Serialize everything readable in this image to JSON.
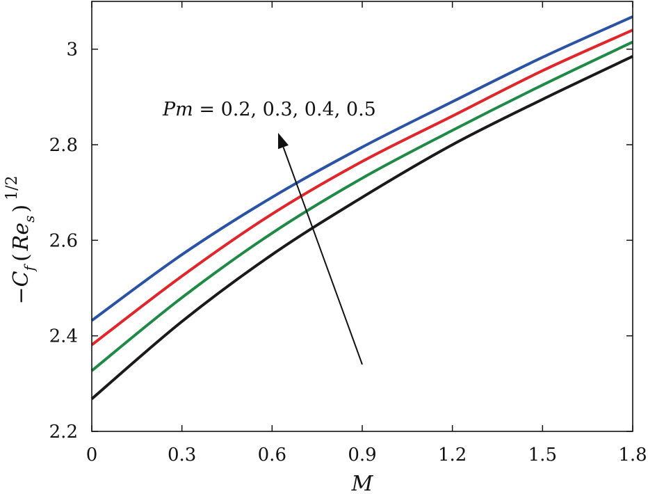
{
  "chart_data": {
    "type": "line",
    "xlabel": "M",
    "ylabel": "−C_f ( Re_s ) 1/2",
    "ylabel_parts": {
      "minus": "−",
      "c": "C",
      "f_sub": "f",
      "open": "(",
      "re": "Re",
      "s_sub": "s",
      "close": ")",
      "exp": "1/2"
    },
    "xlim": [
      0,
      1.8
    ],
    "ylim": [
      2.2,
      3.1
    ],
    "x_ticks": [
      0,
      0.3,
      0.6,
      0.9,
      1.2,
      1.5,
      1.8
    ],
    "x_tick_labels": [
      "0",
      "0.3",
      "0.6",
      "0.9",
      "1.2",
      "1.5",
      "1.8"
    ],
    "y_ticks": [
      2.2,
      2.4,
      2.6,
      2.8,
      3.0
    ],
    "y_tick_labels": [
      "2.2",
      "2.4",
      "2.6",
      "2.8",
      "3"
    ],
    "grid": false,
    "legend": "none",
    "x": [
      0,
      0.3,
      0.6,
      0.9,
      1.2,
      1.5,
      1.8
    ],
    "series": [
      {
        "color": "#1a1a1a",
        "values": [
          2.268,
          2.43,
          2.57,
          2.69,
          2.8,
          2.895,
          2.985
        ]
      },
      {
        "color": "#1e8a45",
        "values": [
          2.327,
          2.48,
          2.615,
          2.73,
          2.83,
          2.925,
          3.015
        ]
      },
      {
        "color": "#e0262b",
        "values": [
          2.381,
          2.525,
          2.655,
          2.765,
          2.86,
          2.955,
          3.04
        ]
      },
      {
        "color": "#2a53a6",
        "values": [
          2.432,
          2.57,
          2.69,
          2.795,
          2.89,
          2.983,
          3.068
        ]
      }
    ],
    "annotation": {
      "pm": "Pm",
      "text": "= 0.2, 0.3, 0.4, 0.5",
      "arrow_from": [
        0.9,
        2.34
      ],
      "arrow_to": [
        0.62,
        2.825
      ]
    }
  }
}
